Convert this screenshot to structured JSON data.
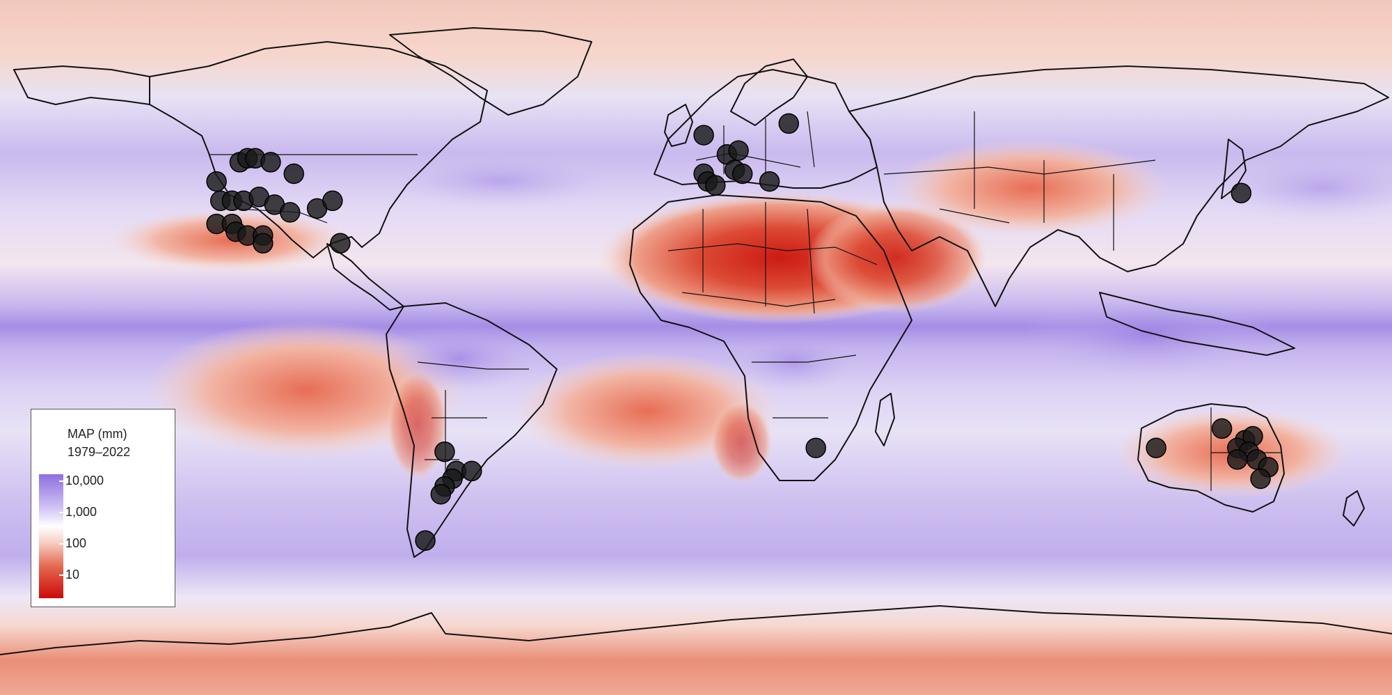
{
  "legend": {
    "title": "MAP (mm)",
    "period": "1979–2022",
    "ticks": [
      "10,000",
      "1,000",
      "100",
      "10"
    ],
    "colors": {
      "wet": "#8c6fe0",
      "mid": "#ffffff",
      "dry": "#cc0a0a"
    }
  },
  "map": {
    "projection": "equirectangular",
    "ocean_wet_color": "#b8a6ea",
    "dry_color": "#dd4a32",
    "boundary_color": "#111111",
    "site_marker_color": "#1a1a1a"
  },
  "sites": [
    {
      "region": "North America",
      "lon": -124,
      "lat": 43
    },
    {
      "region": "North America",
      "lon": -118,
      "lat": 48
    },
    {
      "region": "North America",
      "lon": -116,
      "lat": 49
    },
    {
      "region": "North America",
      "lon": -114,
      "lat": 49
    },
    {
      "region": "North America",
      "lon": -110,
      "lat": 48
    },
    {
      "region": "North America",
      "lon": -104,
      "lat": 45
    },
    {
      "region": "North America",
      "lon": -123,
      "lat": 38
    },
    {
      "region": "North America",
      "lon": -120,
      "lat": 38
    },
    {
      "region": "North America",
      "lon": -117,
      "lat": 38
    },
    {
      "region": "North America",
      "lon": -113,
      "lat": 39
    },
    {
      "region": "North America",
      "lon": -109,
      "lat": 37
    },
    {
      "region": "North America",
      "lon": -105,
      "lat": 35
    },
    {
      "region": "North America",
      "lon": -98,
      "lat": 36
    },
    {
      "region": "North America",
      "lon": -94,
      "lat": 38
    },
    {
      "region": "North America",
      "lon": -124,
      "lat": 32
    },
    {
      "region": "North America",
      "lon": -120,
      "lat": 32
    },
    {
      "region": "North America",
      "lon": -119,
      "lat": 30
    },
    {
      "region": "North America",
      "lon": -116,
      "lat": 29
    },
    {
      "region": "North America",
      "lon": -112,
      "lat": 29
    },
    {
      "region": "North America",
      "lon": -112,
      "lat": 27
    },
    {
      "region": "North America",
      "lon": -92,
      "lat": 27
    },
    {
      "region": "Europe",
      "lon": 2,
      "lat": 55
    },
    {
      "region": "Europe",
      "lon": 8,
      "lat": 50
    },
    {
      "region": "Europe",
      "lon": 11,
      "lat": 51
    },
    {
      "region": "Europe",
      "lon": 10,
      "lat": 46
    },
    {
      "region": "Europe",
      "lon": 12,
      "lat": 45
    },
    {
      "region": "Europe",
      "lon": 2,
      "lat": 45
    },
    {
      "region": "Europe",
      "lon": 3,
      "lat": 43
    },
    {
      "region": "Europe",
      "lon": 5,
      "lat": 42
    },
    {
      "region": "Europe",
      "lon": 19,
      "lat": 43
    },
    {
      "region": "Europe",
      "lon": 24,
      "lat": 58
    },
    {
      "region": "Asia",
      "lon": 141,
      "lat": 40
    },
    {
      "region": "Africa",
      "lon": 31,
      "lat": -26
    },
    {
      "region": "South America",
      "lon": -65,
      "lat": -27
    },
    {
      "region": "South America",
      "lon": -62,
      "lat": -32
    },
    {
      "region": "South America",
      "lon": -58,
      "lat": -32
    },
    {
      "region": "South America",
      "lon": -63,
      "lat": -34
    },
    {
      "region": "South America",
      "lon": -65,
      "lat": -36
    },
    {
      "region": "South America",
      "lon": -66,
      "lat": -38
    },
    {
      "region": "South America",
      "lon": -70,
      "lat": -50
    },
    {
      "region": "Australia",
      "lon": 119,
      "lat": -26
    },
    {
      "region": "Australia",
      "lon": 136,
      "lat": -21
    },
    {
      "region": "Australia",
      "lon": 142,
      "lat": -24
    },
    {
      "region": "Australia",
      "lon": 144,
      "lat": -23
    },
    {
      "region": "Australia",
      "lon": 140,
      "lat": -26
    },
    {
      "region": "Australia",
      "lon": 143,
      "lat": -27
    },
    {
      "region": "Australia",
      "lon": 140,
      "lat": -29
    },
    {
      "region": "Australia",
      "lon": 145,
      "lat": -29
    },
    {
      "region": "Australia",
      "lon": 148,
      "lat": -31
    },
    {
      "region": "Australia",
      "lon": 146,
      "lat": -34
    }
  ]
}
